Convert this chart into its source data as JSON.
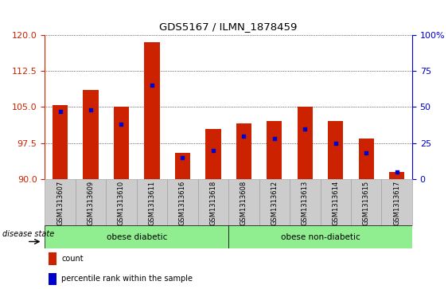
{
  "title": "GDS5167 / ILMN_1878459",
  "samples": [
    "GSM1313607",
    "GSM1313609",
    "GSM1313610",
    "GSM1313611",
    "GSM1313616",
    "GSM1313618",
    "GSM1313608",
    "GSM1313612",
    "GSM1313613",
    "GSM1313614",
    "GSM1313615",
    "GSM1313617"
  ],
  "count_values": [
    105.3,
    108.5,
    105.0,
    118.5,
    95.5,
    100.5,
    101.5,
    102.0,
    105.0,
    102.0,
    98.5,
    91.5
  ],
  "percentile_values": [
    47,
    48,
    38,
    65,
    15,
    20,
    30,
    28,
    35,
    25,
    18,
    5
  ],
  "ylim_left": [
    90,
    120
  ],
  "ylim_right": [
    0,
    100
  ],
  "yticks_left": [
    90,
    97.5,
    105,
    112.5,
    120
  ],
  "yticks_right": [
    0,
    25,
    50,
    75,
    100
  ],
  "groups": [
    {
      "label": "obese diabetic",
      "start": 0,
      "end": 6
    },
    {
      "label": "obese non-diabetic",
      "start": 6,
      "end": 12
    }
  ],
  "disease_state_label": "disease state",
  "bar_color": "#CC2200",
  "dot_color": "#0000CC",
  "left_axis_color": "#CC2200",
  "right_axis_color": "#0000CC",
  "legend_count_label": "count",
  "legend_percentile_label": "percentile rank within the sample",
  "grid_color": "black",
  "bar_width": 0.5,
  "group_fill_color": "#90EE90",
  "xtick_bg_color": "#CCCCCC",
  "xtick_border_color": "#999999"
}
